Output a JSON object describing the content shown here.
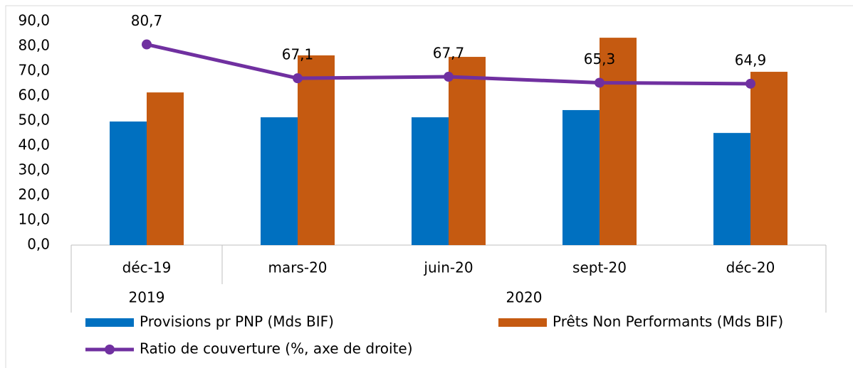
{
  "chart_data": {
    "type": "bar",
    "groups": [
      {
        "label": "2019",
        "categories": [
          "déc-19"
        ]
      },
      {
        "label": "2020",
        "categories": [
          "mars-20",
          "juin-20",
          "sept-20",
          "déc-20"
        ]
      }
    ],
    "series": [
      {
        "name": "Provisions pr PNP (Mds BIF)",
        "color": "#0070c0",
        "values": [
          49.7,
          51.4,
          51.4,
          54.3,
          45.1
        ]
      },
      {
        "name": "Prêts Non Performants (Mds BIF)",
        "color": "#c55a11",
        "values": [
          61.4,
          76.3,
          75.7,
          83.4,
          69.7
        ]
      },
      {
        "name": "Ratio de couverture (%, axe de droite)",
        "type": "line",
        "color": "#7030a0",
        "values": [
          80.7,
          67.1,
          67.7,
          65.3,
          64.9
        ],
        "value_labels": [
          "80,7",
          "67,1",
          "67,7",
          "65,3",
          "64,9"
        ]
      }
    ],
    "ylim": [
      0,
      90
    ],
    "yticks": [
      {
        "value": 0,
        "label": "0,0"
      },
      {
        "value": 10,
        "label": "10,0"
      },
      {
        "value": 20,
        "label": "20,0"
      },
      {
        "value": 30,
        "label": "30,0"
      },
      {
        "value": 40,
        "label": "40,0"
      },
      {
        "value": 50,
        "label": "50,0"
      },
      {
        "value": 60,
        "label": "60,0"
      },
      {
        "value": 70,
        "label": "70,0"
      },
      {
        "value": 80,
        "label": "80,0"
      },
      {
        "value": 90,
        "label": "90,0"
      }
    ]
  }
}
